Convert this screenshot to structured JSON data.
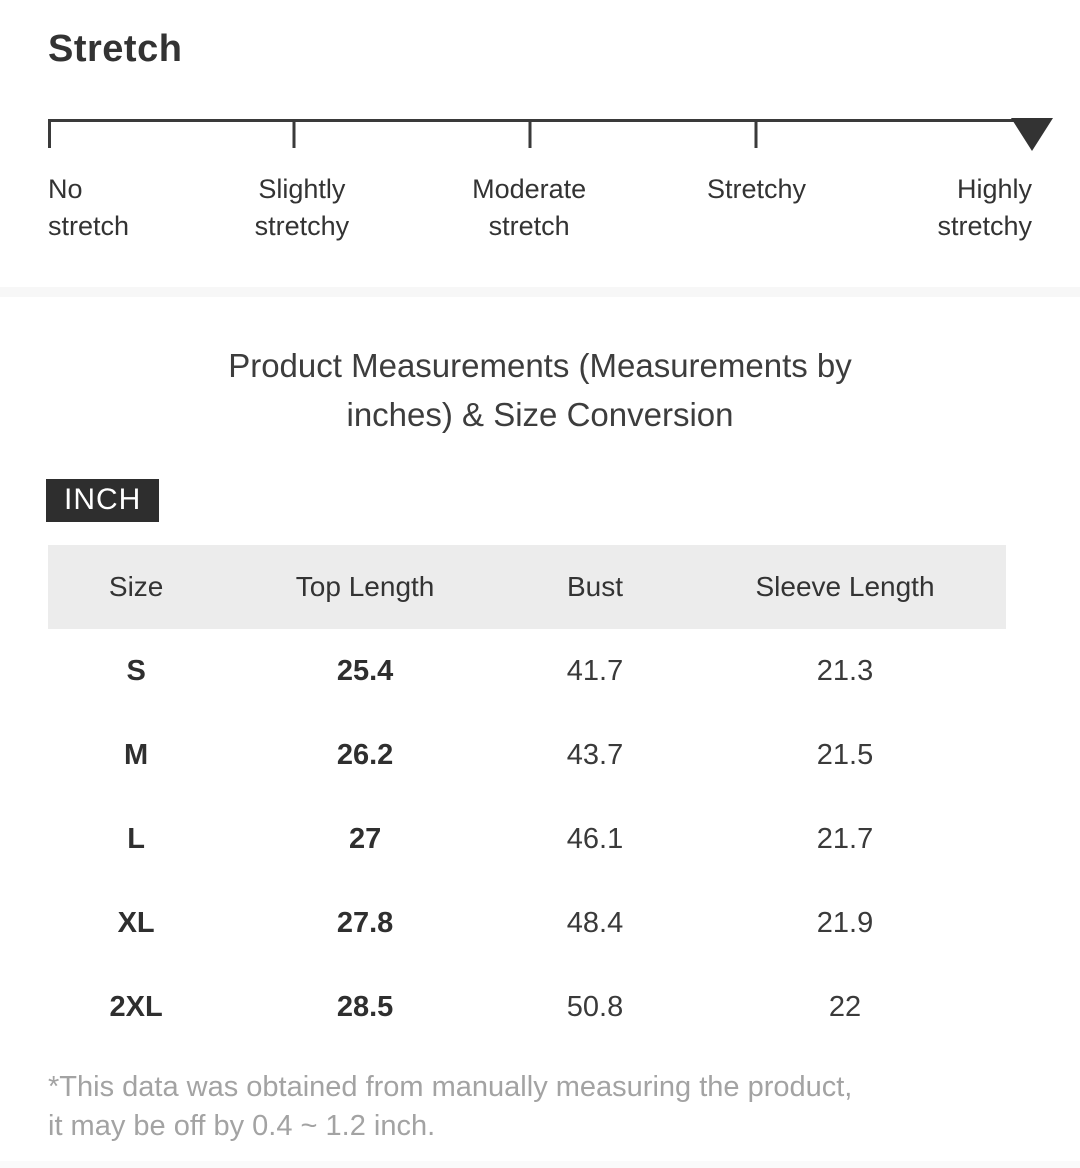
{
  "stretch": {
    "title": "Stretch",
    "levels": [
      "No\nstretch",
      "Slightly\nstretchy",
      "Moderate\nstretch",
      "Stretchy",
      "Highly\nstretchy"
    ],
    "selected_level": "Highly stretchy",
    "selected_index": 4
  },
  "measurements": {
    "title": "Product Measurements (Measurements by\ninches) & Size Conversion",
    "unit_badge": "INCH",
    "table": {
      "columns": [
        "Size",
        "Top Length",
        "Bust",
        "Sleeve Length"
      ],
      "rows": [
        [
          "S",
          "25.4",
          "41.7",
          "21.3"
        ],
        [
          "M",
          "26.2",
          "43.7",
          "21.5"
        ],
        [
          "L",
          "27",
          "46.1",
          "21.7"
        ],
        [
          "XL",
          "27.8",
          "48.4",
          "21.9"
        ],
        [
          "2XL",
          "28.5",
          "50.8",
          "22"
        ]
      ]
    },
    "footnote": "*This data was obtained from manually measuring the product,\n it may be off by 0.4 ~ 1.2 inch."
  },
  "colors": {
    "text_dark": "#333333",
    "title_text": "#3d3d3d",
    "scale_line": "#3a3a3a",
    "marker": "#333333",
    "badge_bg": "#2e2e2e",
    "badge_text": "#ffffff",
    "table_header_bg": "#ececec",
    "divider": "#f7f7f7",
    "footnote_text": "#a3a3a3"
  }
}
